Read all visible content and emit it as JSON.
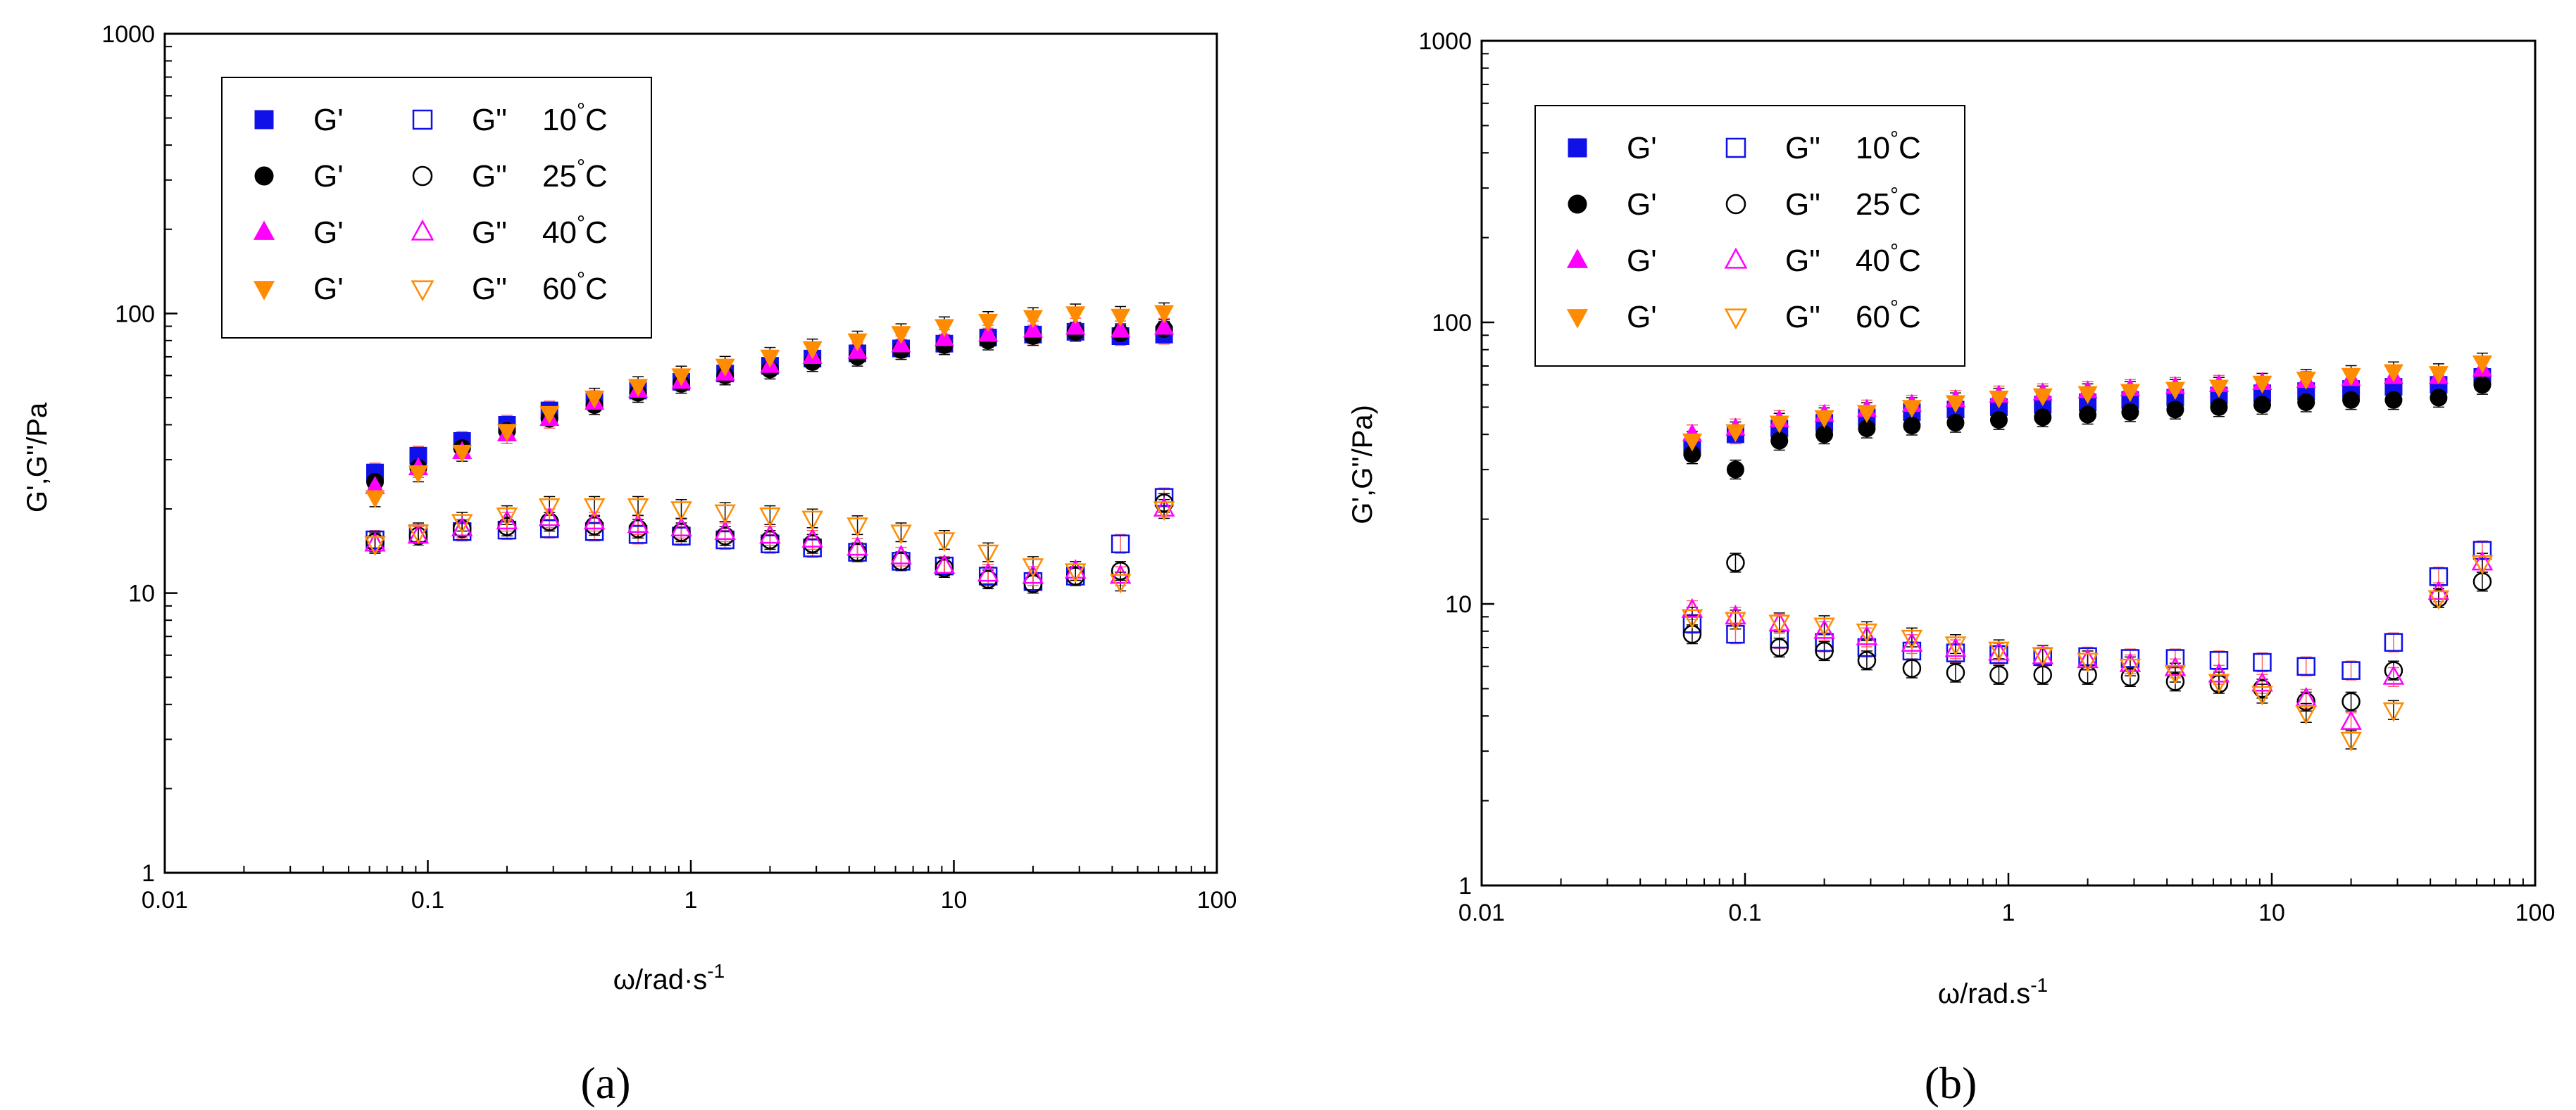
{
  "colors": {
    "blue": "#1010e8",
    "black": "#000000",
    "magenta": "#ff00ff",
    "orange": "#ff8c00",
    "errorbar_red": "#ff6060"
  },
  "chart_data": [
    {
      "id": "a",
      "type": "scatter",
      "caption": "(a)",
      "xlabel": "ω/rad·s",
      "xlabel_sup": "-1",
      "ylabel": "G',G''/Pa",
      "xscale": "log",
      "yscale": "log",
      "xlim": [
        0.01,
        100
      ],
      "ylim": [
        1,
        1000
      ],
      "x_ticks": [
        0.01,
        0.1,
        1,
        10,
        100
      ],
      "x_tick_labels": [
        "0.01",
        "0.1",
        "1",
        "10",
        "100"
      ],
      "y_ticks": [
        1,
        10,
        100,
        1000
      ],
      "y_tick_labels": [
        "1",
        "10",
        "100",
        "1000"
      ],
      "legend_position": "top-left",
      "legend": [
        {
          "left": "G'",
          "right": "G\"",
          "temp": "10",
          "unit": "°C"
        },
        {
          "left": "G'",
          "right": "G\"",
          "temp": "25",
          "unit": "°C"
        },
        {
          "left": "G'",
          "right": "G\"",
          "temp": "40",
          "unit": "°C"
        },
        {
          "left": "G'",
          "right": "G\"",
          "temp": "60",
          "unit": "°C"
        }
      ],
      "x": [
        0.063,
        0.092,
        0.135,
        0.2,
        0.29,
        0.43,
        0.63,
        0.92,
        1.35,
        2.0,
        2.9,
        4.3,
        6.3,
        9.2,
        13.5,
        20,
        29,
        43,
        63
      ],
      "series": [
        {
          "name": "G' 10°C",
          "color": "blue",
          "marker": "square",
          "filled": true,
          "values": [
            27,
            31,
            35,
            40,
            45,
            49,
            53,
            57,
            61,
            65,
            69,
            72,
            75,
            78,
            82,
            84,
            86,
            83,
            84
          ]
        },
        {
          "name": "G' 25°C",
          "color": "black",
          "marker": "circle",
          "filled": true,
          "values": [
            25,
            28,
            33,
            38,
            42,
            47,
            52,
            56,
            60,
            63,
            67,
            70,
            74,
            77,
            80,
            83,
            86,
            85,
            88
          ]
        },
        {
          "name": "G' 40°C",
          "color": "magenta",
          "marker": "triangle-up",
          "filled": true,
          "values": [
            24,
            28,
            32,
            37,
            42,
            48,
            53,
            57,
            61,
            65,
            70,
            73,
            77,
            81,
            84,
            87,
            89,
            87,
            89
          ]
        },
        {
          "name": "G' 60°C",
          "color": "orange",
          "marker": "triangle-down",
          "filled": true,
          "values": [
            22,
            27,
            32,
            38,
            44,
            50,
            55,
            60,
            65,
            70,
            75,
            80,
            85,
            90,
            94,
            97,
            100,
            98,
            101
          ]
        },
        {
          "name": "G\" 10°C",
          "color": "blue",
          "marker": "square",
          "filled": false,
          "values": [
            15.5,
            16.3,
            16.6,
            16.8,
            17,
            16.6,
            16.2,
            16,
            15.5,
            15,
            14.5,
            14,
            13,
            12.5,
            11.5,
            11,
            11.5,
            15,
            22
          ]
        },
        {
          "name": "G\" 25°C",
          "color": "black",
          "marker": "circle",
          "filled": false,
          "values": [
            15.2,
            16,
            17,
            17.3,
            18,
            17.4,
            17,
            16.5,
            16,
            15.5,
            15,
            14,
            13,
            12.3,
            11.2,
            10.8,
            11.5,
            12,
            21
          ]
        },
        {
          "name": "G\" 40°C",
          "color": "magenta",
          "marker": "triangle-up",
          "filled": false,
          "values": [
            15,
            16,
            17,
            18,
            18.5,
            18,
            17.5,
            17,
            16.5,
            16,
            15.5,
            14.5,
            13.5,
            12.5,
            11.7,
            11.5,
            12,
            11.5,
            20
          ]
        },
        {
          "name": "G\" 60°C",
          "color": "orange",
          "marker": "triangle-down",
          "filled": false,
          "values": [
            15,
            16.5,
            18,
            19,
            20.5,
            20.5,
            20.5,
            20,
            19.5,
            19,
            18.5,
            17.5,
            16.5,
            15.5,
            14,
            12.5,
            12,
            11,
            20
          ]
        }
      ]
    },
    {
      "id": "b",
      "type": "scatter",
      "caption": "(b)",
      "xlabel": "ω/rad.s",
      "xlabel_sup": "-1",
      "ylabel": "G',G''/Pa)",
      "xscale": "log",
      "yscale": "log",
      "xlim": [
        0.01,
        100
      ],
      "ylim": [
        1,
        1000
      ],
      "x_ticks": [
        0.01,
        0.1,
        1,
        10,
        100
      ],
      "x_tick_labels": [
        "0.01",
        "0.1",
        "1",
        "10",
        "100"
      ],
      "y_ticks": [
        1,
        10,
        100,
        1000
      ],
      "y_tick_labels": [
        "1",
        "10",
        "100",
        "1000"
      ],
      "legend_position": "top-left",
      "legend": [
        {
          "left": "G'",
          "right": "G\"",
          "temp": "10",
          "unit": "°C"
        },
        {
          "left": "G'",
          "right": "G\"",
          "temp": "25",
          "unit": "°C"
        },
        {
          "left": "G'",
          "right": "G\"",
          "temp": "40",
          "unit": "°C"
        },
        {
          "left": "G'",
          "right": "G\"",
          "temp": "60",
          "unit": "°C"
        }
      ],
      "x": [
        0.063,
        0.092,
        0.135,
        0.2,
        0.29,
        0.43,
        0.63,
        0.92,
        1.35,
        2.0,
        2.9,
        4.3,
        6.3,
        9.2,
        13.5,
        20,
        29,
        43,
        63
      ],
      "series": [
        {
          "name": "G' 10°C",
          "color": "blue",
          "marker": "square",
          "filled": true,
          "values": [
            36,
            40,
            42,
            44,
            46,
            48,
            49,
            50,
            51,
            52,
            53,
            54,
            55,
            56,
            57,
            58,
            59,
            60,
            64
          ]
        },
        {
          "name": "G' 25°C",
          "color": "black",
          "marker": "circle",
          "filled": true,
          "values": [
            34,
            30,
            38,
            40,
            42,
            43,
            44,
            45,
            46,
            47,
            48,
            49,
            50,
            51,
            52,
            53,
            53,
            54,
            60
          ]
        },
        {
          "name": "G' 40°C",
          "color": "magenta",
          "marker": "triangle-up",
          "filled": true,
          "values": [
            40,
            42,
            45,
            47,
            49,
            51,
            53,
            55,
            56,
            57,
            58,
            59,
            60,
            61,
            62,
            63,
            64,
            64,
            68
          ]
        },
        {
          "name": "G' 60°C",
          "color": "orange",
          "marker": "triangle-down",
          "filled": true,
          "values": [
            38,
            41,
            44,
            46,
            48,
            50,
            52,
            54,
            55,
            56,
            57,
            58,
            59,
            61,
            63,
            65,
            67,
            66,
            72
          ]
        },
        {
          "name": "G\" 10°C",
          "color": "blue",
          "marker": "square",
          "filled": false,
          "values": [
            8.5,
            7.8,
            7.5,
            7.3,
            7,
            6.8,
            6.7,
            6.6,
            6.5,
            6.5,
            6.4,
            6.4,
            6.3,
            6.2,
            6,
            5.8,
            7.3,
            12.5,
            15.5
          ]
        },
        {
          "name": "G\" 25°C",
          "color": "black",
          "marker": "circle",
          "filled": false,
          "values": [
            7.8,
            14,
            7,
            6.8,
            6.3,
            5.9,
            5.7,
            5.6,
            5.6,
            5.6,
            5.5,
            5.3,
            5.2,
            5,
            4.5,
            4.5,
            5.8,
            10.5,
            12
          ]
        },
        {
          "name": "G\" 40°C",
          "color": "magenta",
          "marker": "triangle-up",
          "filled": false,
          "values": [
            9.5,
            9,
            8.5,
            8,
            7.6,
            7.2,
            6.9,
            6.7,
            6.5,
            6.3,
            6.1,
            5.9,
            5.6,
            5.2,
            4.6,
            3.8,
            5.5,
            11,
            14
          ]
        },
        {
          "name": "G\" 60°C",
          "color": "orange",
          "marker": "triangle-down",
          "filled": false,
          "values": [
            9,
            8.8,
            8.6,
            8.4,
            8,
            7.6,
            7.2,
            6.9,
            6.6,
            6.3,
            6,
            5.7,
            5.3,
            4.8,
            4.1,
            3.3,
            4.2,
            10.5,
            14
          ]
        }
      ]
    }
  ]
}
